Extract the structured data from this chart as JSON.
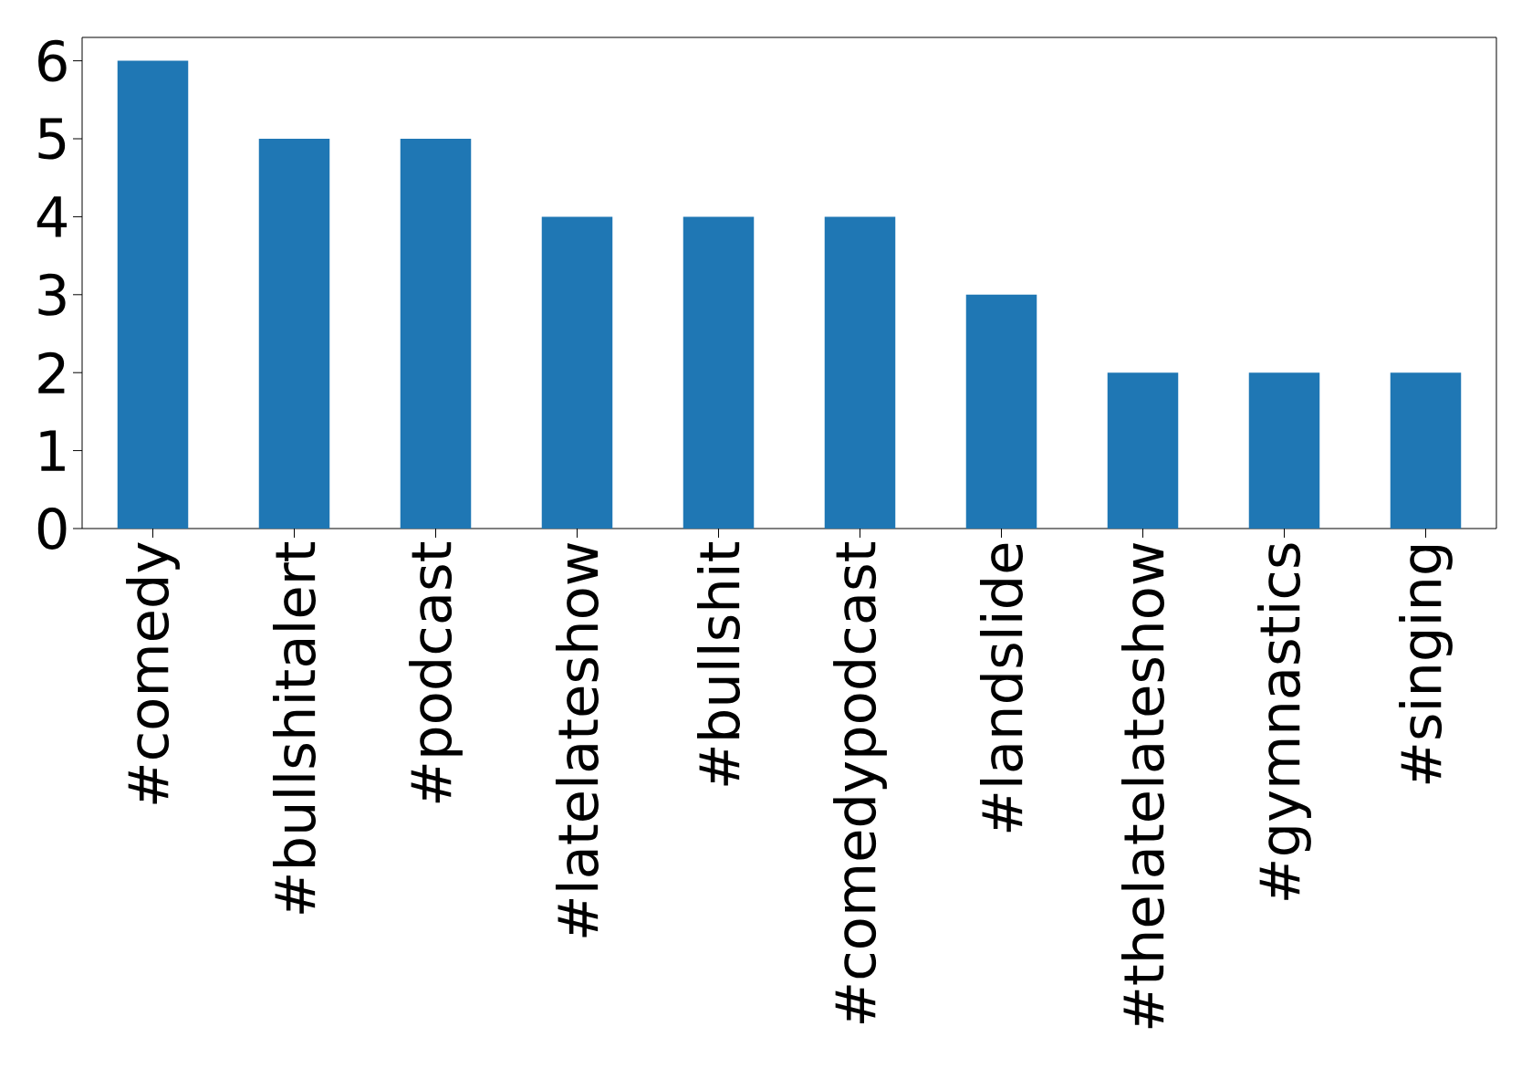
{
  "chart_data": {
    "type": "bar",
    "categories": [
      "#comedy",
      "#bullshitalert",
      "#podcast",
      "#latelateshow",
      "#bullshit",
      "#comedypodcast",
      "#landslide",
      "#thelatelateshow",
      "#gymnastics",
      "#singing"
    ],
    "values": [
      6,
      5,
      5,
      4,
      4,
      4,
      3,
      2,
      2,
      2
    ],
    "color": "#1f77b4",
    "ylim": [
      0,
      6.3
    ],
    "yticks": [
      0,
      1,
      2,
      3,
      4,
      5,
      6
    ],
    "grid": false
  }
}
